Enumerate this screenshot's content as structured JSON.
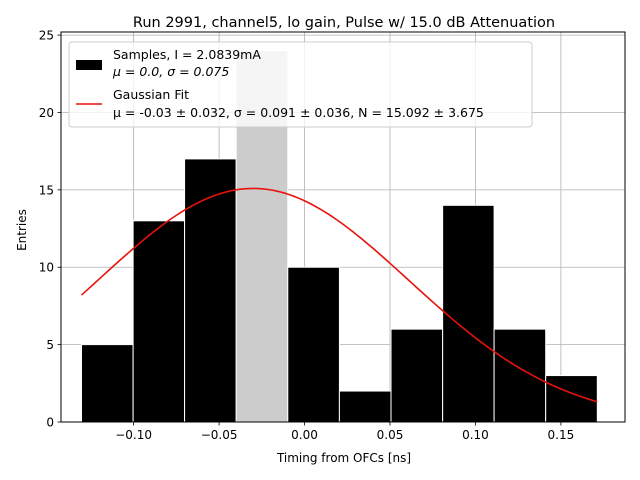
{
  "chart_data": {
    "type": "bar",
    "title": "Run 2991, channel5, lo gain, Pulse w/ 15.0 dB Attenuation",
    "xlabel": "Timing from OFCs [ns]",
    "ylabel": "Entries",
    "xlim": [
      -0.1425,
      0.1875
    ],
    "ylim": [
      0,
      25.2
    ],
    "xticks": [
      -0.1,
      -0.05,
      0.0,
      0.05,
      0.1,
      0.15
    ],
    "xtick_labels": [
      "−0.10",
      "−0.05",
      "0.00",
      "0.05",
      "0.10",
      "0.15"
    ],
    "yticks": [
      0,
      5,
      10,
      15,
      20,
      25
    ],
    "ytick_labels": [
      "0",
      "5",
      "10",
      "15",
      "20",
      "25"
    ],
    "grid": true,
    "legend_position": "top-left",
    "bins": {
      "edges": [
        -0.1305,
        -0.1003,
        -0.0702,
        -0.04,
        -0.0098,
        0.0204,
        0.0506,
        0.0808,
        0.1109,
        0.1411,
        0.1713
      ],
      "counts": [
        5,
        13,
        17,
        24,
        10,
        2,
        6,
        14,
        6,
        3
      ]
    },
    "series": [
      {
        "name": "Samples, I = 2.0839mA",
        "name_line2": "μ = 0.0, σ = 0.075",
        "type": "histogram",
        "color": "#000000",
        "highlight_bin": 3,
        "highlight_color": "#cccccc"
      },
      {
        "name": "Gaussian Fit",
        "name_line2": "μ = -0.03 ± 0.032, σ = 0.091 ± 0.036, N = 15.092 ± 3.675",
        "type": "line",
        "color": "#e8120c",
        "mu": -0.03,
        "sigma": 0.091,
        "N": 15.092,
        "x_range": [
          -0.1305,
          0.1713
        ]
      }
    ]
  }
}
